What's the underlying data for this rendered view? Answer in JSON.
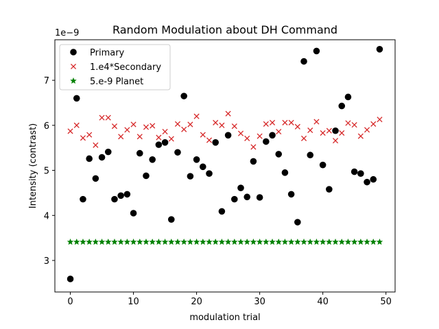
{
  "chart_data": {
    "type": "scatter",
    "title": "Random Modulation about DH Command",
    "xlabel": "modulation trial",
    "ylabel": "Intensity (contrast)",
    "y_offset_label": "1e−9",
    "y_scale_exponent": -9,
    "xlim": [
      -2.45,
      51.45
    ],
    "ylim": [
      2.3,
      7.9
    ],
    "xticks": [
      0,
      10,
      20,
      30,
      40,
      50
    ],
    "xtick_labels": [
      "0",
      "10",
      "20",
      "30",
      "40",
      "50"
    ],
    "yticks": [
      3,
      4,
      5,
      6,
      7
    ],
    "ytick_labels": [
      "3",
      "4",
      "5",
      "6",
      "7"
    ],
    "grid": false,
    "legend_position": "top-left",
    "colors": {
      "primary": "#000000",
      "secondary": "#d62728",
      "planet": "#008000"
    },
    "series": [
      {
        "name": "Primary",
        "label": "Primary",
        "marker": "circle",
        "color": "#000000",
        "x": [
          0,
          1,
          2,
          3,
          4,
          5,
          6,
          7,
          8,
          9,
          10,
          11,
          12,
          13,
          14,
          15,
          16,
          17,
          18,
          19,
          20,
          21,
          22,
          23,
          24,
          25,
          26,
          27,
          28,
          29,
          30,
          31,
          32,
          33,
          34,
          35,
          36,
          37,
          38,
          39,
          40,
          41,
          42,
          43,
          44,
          45,
          46,
          47,
          48,
          49
        ],
        "values": [
          2.59,
          6.6,
          4.36,
          5.26,
          4.82,
          5.29,
          5.41,
          4.36,
          4.44,
          4.47,
          4.05,
          5.38,
          4.88,
          5.24,
          5.57,
          5.62,
          3.91,
          5.4,
          6.65,
          4.87,
          5.24,
          5.08,
          4.93,
          5.62,
          4.09,
          5.78,
          4.36,
          4.61,
          4.41,
          5.2,
          4.4,
          5.64,
          5.78,
          5.36,
          4.95,
          4.47,
          3.85,
          7.42,
          5.34,
          7.65,
          5.12,
          4.58,
          5.88,
          6.43,
          6.63,
          4.97,
          4.93,
          4.74,
          4.8,
          7.69
        ]
      },
      {
        "name": "1.e4*Secondary",
        "label": "1.e4*Secondary",
        "marker": "x",
        "color": "#d62728",
        "x": [
          0,
          1,
          2,
          3,
          4,
          5,
          6,
          7,
          8,
          9,
          10,
          11,
          12,
          13,
          14,
          15,
          16,
          17,
          18,
          19,
          20,
          21,
          22,
          23,
          24,
          25,
          26,
          27,
          28,
          29,
          30,
          31,
          32,
          33,
          34,
          35,
          36,
          37,
          38,
          39,
          40,
          41,
          42,
          43,
          44,
          45,
          46,
          47,
          48,
          49
        ],
        "values": [
          5.87,
          6.0,
          5.72,
          5.79,
          5.56,
          6.17,
          6.17,
          5.98,
          5.75,
          5.9,
          6.02,
          5.75,
          5.96,
          5.99,
          5.73,
          5.86,
          5.7,
          6.03,
          5.91,
          6.02,
          6.2,
          5.79,
          5.67,
          6.06,
          6.0,
          6.26,
          5.98,
          5.82,
          5.71,
          5.52,
          5.76,
          6.03,
          6.06,
          5.86,
          6.06,
          6.06,
          5.97,
          5.71,
          5.89,
          6.08,
          5.83,
          5.88,
          5.66,
          5.83,
          6.05,
          6.01,
          5.76,
          5.9,
          6.03,
          6.13
        ]
      },
      {
        "name": "5.e-9 Planet",
        "label": "5.e-9 Planet",
        "marker": "star",
        "color": "#008000",
        "x": [
          0,
          1,
          2,
          3,
          4,
          5,
          6,
          7,
          8,
          9,
          10,
          11,
          12,
          13,
          14,
          15,
          16,
          17,
          18,
          19,
          20,
          21,
          22,
          23,
          24,
          25,
          26,
          27,
          28,
          29,
          30,
          31,
          32,
          33,
          34,
          35,
          36,
          37,
          38,
          39,
          40,
          41,
          42,
          43,
          44,
          45,
          46,
          47,
          48,
          49
        ],
        "values": [
          3.41,
          3.41,
          3.41,
          3.41,
          3.41,
          3.41,
          3.41,
          3.41,
          3.41,
          3.41,
          3.41,
          3.41,
          3.41,
          3.41,
          3.41,
          3.41,
          3.41,
          3.41,
          3.41,
          3.41,
          3.41,
          3.41,
          3.41,
          3.41,
          3.41,
          3.41,
          3.41,
          3.41,
          3.41,
          3.41,
          3.41,
          3.41,
          3.41,
          3.41,
          3.41,
          3.41,
          3.41,
          3.41,
          3.41,
          3.41,
          3.41,
          3.41,
          3.41,
          3.41,
          3.41,
          3.41,
          3.41,
          3.41,
          3.41,
          3.41
        ]
      }
    ]
  }
}
